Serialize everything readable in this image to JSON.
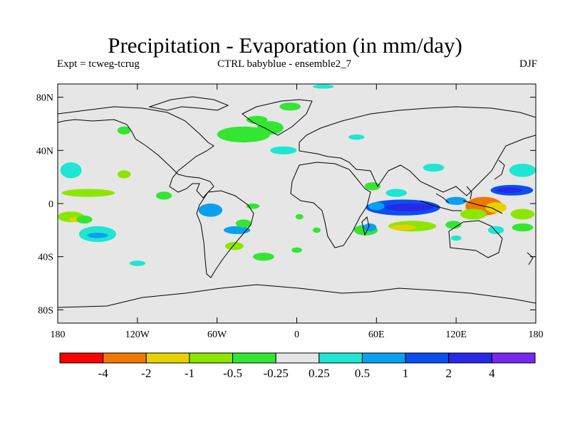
{
  "chart_data": {
    "type": "heatmap",
    "title": "Precipitation - Evaporation (in mm/day)",
    "subtitle_left": "Expt = tcweg-tcrug",
    "subtitle_center": "CTRL babyblue - ensemble2_7",
    "subtitle_right": "DJF",
    "xlabel": "",
    "ylabel": "",
    "xlim": [
      -180,
      180
    ],
    "ylim": [
      -90,
      90
    ],
    "x_ticks": [
      {
        "value": -180,
        "label": "180"
      },
      {
        "value": -120,
        "label": "120W"
      },
      {
        "value": -60,
        "label": "60W"
      },
      {
        "value": 0,
        "label": "0"
      },
      {
        "value": 60,
        "label": "60E"
      },
      {
        "value": 120,
        "label": "120E"
      },
      {
        "value": 180,
        "label": "180"
      }
    ],
    "y_ticks": [
      {
        "value": 80,
        "label": "80N"
      },
      {
        "value": 40,
        "label": "40N"
      },
      {
        "value": 0,
        "label": "0"
      },
      {
        "value": -40,
        "label": "40S"
      },
      {
        "value": -80,
        "label": "80S"
      }
    ],
    "legend": {
      "position": "bottom",
      "colors": [
        "#ff0000",
        "#f07800",
        "#e6d200",
        "#8ce600",
        "#32e632",
        "#e6e6e6",
        "#1ee6d2",
        "#0aa0f0",
        "#0a50f0",
        "#2828e6",
        "#7828f0"
      ],
      "labels": [
        "-4",
        "-2",
        "-1",
        "-0.5",
        "-0.25",
        "0.25",
        "0.5",
        "1",
        "2",
        "4"
      ]
    },
    "background_color": "#e6e6e6",
    "blobs": [
      {
        "lon": 141,
        "lat": -2,
        "rlon": 14,
        "rlat": 7,
        "value": -3.5
      },
      {
        "lon": 150,
        "lat": -3,
        "rlon": 8,
        "rlat": 4,
        "value": -1.5
      },
      {
        "lon": 133,
        "lat": -8,
        "rlon": 10,
        "rlat": 4,
        "value": -0.7
      },
      {
        "lon": 170,
        "lat": -8,
        "rlon": 9,
        "rlat": 4,
        "value": -0.7
      },
      {
        "lon": 170,
        "lat": -18,
        "rlon": 8,
        "rlat": 3,
        "value": -0.3
      },
      {
        "lon": 87,
        "lat": -17,
        "rlon": 18,
        "rlat": 4,
        "value": -0.7
      },
      {
        "lon": 80,
        "lat": -18,
        "rlon": 10,
        "rlat": 2,
        "value": -1.5
      },
      {
        "lon": 52,
        "lat": -20,
        "rlon": 9,
        "rlat": 4,
        "value": -0.4
      },
      {
        "lon": 118,
        "lat": -16,
        "rlon": 6,
        "rlat": 3,
        "value": -0.3
      },
      {
        "lon": 15,
        "lat": -20,
        "rlon": 3,
        "rlat": 2,
        "value": -0.3
      },
      {
        "lon": 2,
        "lat": -10,
        "rlon": 3,
        "rlat": 2,
        "value": -0.3
      },
      {
        "lon": 80,
        "lat": -3,
        "rlon": 28,
        "rlat": 6,
        "value": 1.2
      },
      {
        "lon": 85,
        "lat": -3,
        "rlon": 18,
        "rlat": 3,
        "value": 2.5
      },
      {
        "lon": 60,
        "lat": -2,
        "rlon": 6,
        "rlat": 3,
        "value": 0.7
      },
      {
        "lon": 55,
        "lat": -18,
        "rlon": 5,
        "rlat": 3,
        "value": 0.7
      },
      {
        "lon": 120,
        "lat": 2,
        "rlon": 8,
        "rlat": 3,
        "value": 0.7
      },
      {
        "lon": 162,
        "lat": 10,
        "rlon": 16,
        "rlat": 4,
        "value": 1.2
      },
      {
        "lon": 160,
        "lat": 10,
        "rlon": 10,
        "rlat": 2,
        "value": 2.5
      },
      {
        "lon": 170,
        "lat": 25,
        "rlon": 10,
        "rlat": 5,
        "value": 0.35
      },
      {
        "lon": 103,
        "lat": 27,
        "rlon": 8,
        "rlat": 3,
        "value": 0.35
      },
      {
        "lon": 75,
        "lat": 8,
        "rlon": 8,
        "rlat": 3,
        "value": 0.35
      },
      {
        "lon": 150,
        "lat": -20,
        "rlon": 6,
        "rlat": 3,
        "value": 0.35
      },
      {
        "lon": 120,
        "lat": -26,
        "rlon": 4,
        "rlat": 2,
        "value": 0.35
      },
      {
        "lon": -170,
        "lat": 25,
        "rlon": 8,
        "rlat": 6,
        "value": 0.35
      },
      {
        "lon": -170,
        "lat": -10,
        "rlon": 10,
        "rlat": 4,
        "value": -0.7
      },
      {
        "lon": -157,
        "lat": 8,
        "rlon": 20,
        "rlat": 3,
        "value": -0.7
      },
      {
        "lon": -165,
        "lat": -12,
        "rlon": 6,
        "rlat": 2,
        "value": -1.5
      },
      {
        "lon": -150,
        "lat": -23,
        "rlon": 14,
        "rlat": 6,
        "value": 0.35
      },
      {
        "lon": -150,
        "lat": -24,
        "rlon": 8,
        "rlat": 2,
        "value": 0.7
      },
      {
        "lon": -160,
        "lat": -12,
        "rlon": 6,
        "rlat": 3,
        "value": -0.3
      },
      {
        "lon": -120,
        "lat": -45,
        "rlon": 6,
        "rlat": 2,
        "value": 0.35
      },
      {
        "lon": -65,
        "lat": -5,
        "rlon": 9,
        "rlat": 5,
        "value": 0.7
      },
      {
        "lon": -45,
        "lat": -20,
        "rlon": 10,
        "rlat": 3,
        "value": 0.7
      },
      {
        "lon": -47,
        "lat": -32,
        "rlon": 7,
        "rlat": 3,
        "value": -0.7
      },
      {
        "lon": -40,
        "lat": -15,
        "rlon": 6,
        "rlat": 3,
        "value": -0.3
      },
      {
        "lon": -33,
        "lat": -2,
        "rlon": 5,
        "rlat": 2,
        "value": -0.3
      },
      {
        "lon": -40,
        "lat": 52,
        "rlon": 20,
        "rlat": 6,
        "value": -0.35
      },
      {
        "lon": -20,
        "lat": 57,
        "rlon": 10,
        "rlat": 5,
        "value": -0.3
      },
      {
        "lon": -30,
        "lat": 63,
        "rlon": 8,
        "rlat": 3,
        "value": -0.3
      },
      {
        "lon": -5,
        "lat": 73,
        "rlon": 8,
        "rlat": 3,
        "value": -0.3
      },
      {
        "lon": 20,
        "lat": 88,
        "rlon": 8,
        "rlat": 1.5,
        "value": 0.35
      },
      {
        "lon": -10,
        "lat": 40,
        "rlon": 10,
        "rlat": 3,
        "value": 0.35
      },
      {
        "lon": -130,
        "lat": 55,
        "rlon": 5,
        "rlat": 3,
        "value": -0.3
      },
      {
        "lon": -130,
        "lat": 22,
        "rlon": 5,
        "rlat": 3,
        "value": -0.7
      },
      {
        "lon": -100,
        "lat": 6,
        "rlon": 6,
        "rlat": 3,
        "value": -0.3
      },
      {
        "lon": -25,
        "lat": -40,
        "rlon": 8,
        "rlat": 3,
        "value": -0.3
      },
      {
        "lon": 0,
        "lat": -35,
        "rlon": 4,
        "rlat": 2,
        "value": -0.3
      },
      {
        "lon": 45,
        "lat": 50,
        "rlon": 6,
        "rlat": 2,
        "value": 0.35
      },
      {
        "lon": 57,
        "lat": 13,
        "rlon": 6,
        "rlat": 3,
        "value": -0.3
      }
    ]
  }
}
